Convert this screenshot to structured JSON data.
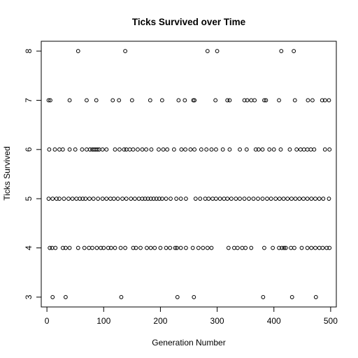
{
  "chart_data": {
    "type": "scatter",
    "title": "Ticks Survived over Time",
    "xlabel": "Generation Number",
    "ylabel": "Ticks Survived",
    "xlim": [
      -10,
      510
    ],
    "ylim": [
      2.8,
      8.2
    ],
    "xticks": [
      0,
      100,
      200,
      300,
      400,
      500
    ],
    "yticks": [
      3,
      4,
      5,
      6,
      7,
      8
    ],
    "grid": false,
    "marker": "open-circle",
    "points": [
      [
        55,
        8
      ],
      [
        138,
        8
      ],
      [
        283,
        8
      ],
      [
        300,
        8
      ],
      [
        413,
        8
      ],
      [
        435,
        8
      ],
      [
        3,
        7
      ],
      [
        6,
        7
      ],
      [
        40,
        7
      ],
      [
        70,
        7
      ],
      [
        87,
        7
      ],
      [
        116,
        7
      ],
      [
        127,
        7
      ],
      [
        150,
        7
      ],
      [
        182,
        7
      ],
      [
        203,
        7
      ],
      [
        232,
        7
      ],
      [
        243,
        7
      ],
      [
        258,
        7
      ],
      [
        260,
        7
      ],
      [
        297,
        7
      ],
      [
        318,
        7
      ],
      [
        322,
        7
      ],
      [
        348,
        7
      ],
      [
        353,
        7
      ],
      [
        360,
        7
      ],
      [
        366,
        7
      ],
      [
        383,
        7
      ],
      [
        386,
        7
      ],
      [
        409,
        7
      ],
      [
        437,
        7
      ],
      [
        460,
        7
      ],
      [
        468,
        7
      ],
      [
        485,
        7
      ],
      [
        490,
        7
      ],
      [
        497,
        7
      ],
      [
        4,
        6
      ],
      [
        14,
        6
      ],
      [
        22,
        6
      ],
      [
        28,
        6
      ],
      [
        40,
        6
      ],
      [
        50,
        6
      ],
      [
        62,
        6
      ],
      [
        70,
        6
      ],
      [
        76,
        6
      ],
      [
        80,
        6
      ],
      [
        83,
        6
      ],
      [
        86,
        6
      ],
      [
        89,
        6
      ],
      [
        92,
        6
      ],
      [
        98,
        6
      ],
      [
        105,
        6
      ],
      [
        120,
        6
      ],
      [
        128,
        6
      ],
      [
        136,
        6
      ],
      [
        140,
        6
      ],
      [
        146,
        6
      ],
      [
        152,
        6
      ],
      [
        160,
        6
      ],
      [
        168,
        6
      ],
      [
        175,
        6
      ],
      [
        184,
        6
      ],
      [
        197,
        6
      ],
      [
        205,
        6
      ],
      [
        212,
        6
      ],
      [
        224,
        6
      ],
      [
        237,
        6
      ],
      [
        244,
        6
      ],
      [
        253,
        6
      ],
      [
        260,
        6
      ],
      [
        272,
        6
      ],
      [
        281,
        6
      ],
      [
        290,
        6
      ],
      [
        298,
        6
      ],
      [
        310,
        6
      ],
      [
        322,
        6
      ],
      [
        340,
        6
      ],
      [
        352,
        6
      ],
      [
        368,
        6
      ],
      [
        373,
        6
      ],
      [
        380,
        6
      ],
      [
        392,
        6
      ],
      [
        400,
        6
      ],
      [
        412,
        6
      ],
      [
        428,
        6
      ],
      [
        440,
        6
      ],
      [
        447,
        6
      ],
      [
        453,
        6
      ],
      [
        459,
        6
      ],
      [
        465,
        6
      ],
      [
        471,
        6
      ],
      [
        490,
        6
      ],
      [
        498,
        6
      ],
      [
        3,
        5
      ],
      [
        10,
        5
      ],
      [
        17,
        5
      ],
      [
        22,
        5
      ],
      [
        30,
        5
      ],
      [
        38,
        5
      ],
      [
        45,
        5
      ],
      [
        52,
        5
      ],
      [
        58,
        5
      ],
      [
        63,
        5
      ],
      [
        68,
        5
      ],
      [
        75,
        5
      ],
      [
        82,
        5
      ],
      [
        90,
        5
      ],
      [
        98,
        5
      ],
      [
        105,
        5
      ],
      [
        112,
        5
      ],
      [
        118,
        5
      ],
      [
        125,
        5
      ],
      [
        133,
        5
      ],
      [
        140,
        5
      ],
      [
        148,
        5
      ],
      [
        155,
        5
      ],
      [
        162,
        5
      ],
      [
        168,
        5
      ],
      [
        173,
        5
      ],
      [
        178,
        5
      ],
      [
        183,
        5
      ],
      [
        188,
        5
      ],
      [
        193,
        5
      ],
      [
        198,
        5
      ],
      [
        203,
        5
      ],
      [
        210,
        5
      ],
      [
        218,
        5
      ],
      [
        228,
        5
      ],
      [
        236,
        5
      ],
      [
        245,
        5
      ],
      [
        262,
        5
      ],
      [
        270,
        5
      ],
      [
        279,
        5
      ],
      [
        285,
        5
      ],
      [
        292,
        5
      ],
      [
        298,
        5
      ],
      [
        305,
        5
      ],
      [
        312,
        5
      ],
      [
        318,
        5
      ],
      [
        325,
        5
      ],
      [
        333,
        5
      ],
      [
        340,
        5
      ],
      [
        348,
        5
      ],
      [
        356,
        5
      ],
      [
        364,
        5
      ],
      [
        372,
        5
      ],
      [
        380,
        5
      ],
      [
        388,
        5
      ],
      [
        395,
        5
      ],
      [
        403,
        5
      ],
      [
        410,
        5
      ],
      [
        417,
        5
      ],
      [
        424,
        5
      ],
      [
        431,
        5
      ],
      [
        438,
        5
      ],
      [
        445,
        5
      ],
      [
        452,
        5
      ],
      [
        459,
        5
      ],
      [
        466,
        5
      ],
      [
        473,
        5
      ],
      [
        480,
        5
      ],
      [
        487,
        5
      ],
      [
        497,
        5
      ],
      [
        5,
        4
      ],
      [
        9,
        4
      ],
      [
        15,
        4
      ],
      [
        28,
        4
      ],
      [
        33,
        4
      ],
      [
        40,
        4
      ],
      [
        55,
        4
      ],
      [
        66,
        4
      ],
      [
        74,
        4
      ],
      [
        80,
        4
      ],
      [
        88,
        4
      ],
      [
        95,
        4
      ],
      [
        100,
        4
      ],
      [
        108,
        4
      ],
      [
        113,
        4
      ],
      [
        120,
        4
      ],
      [
        130,
        4
      ],
      [
        138,
        4
      ],
      [
        152,
        4
      ],
      [
        157,
        4
      ],
      [
        165,
        4
      ],
      [
        176,
        4
      ],
      [
        183,
        4
      ],
      [
        190,
        4
      ],
      [
        200,
        4
      ],
      [
        210,
        4
      ],
      [
        217,
        4
      ],
      [
        226,
        4
      ],
      [
        229,
        4
      ],
      [
        236,
        4
      ],
      [
        245,
        4
      ],
      [
        257,
        4
      ],
      [
        267,
        4
      ],
      [
        275,
        4
      ],
      [
        283,
        4
      ],
      [
        290,
        4
      ],
      [
        320,
        4
      ],
      [
        330,
        4
      ],
      [
        336,
        4
      ],
      [
        344,
        4
      ],
      [
        350,
        4
      ],
      [
        360,
        4
      ],
      [
        383,
        4
      ],
      [
        398,
        4
      ],
      [
        409,
        4
      ],
      [
        414,
        4
      ],
      [
        418,
        4
      ],
      [
        421,
        4
      ],
      [
        430,
        4
      ],
      [
        436,
        4
      ],
      [
        449,
        4
      ],
      [
        459,
        4
      ],
      [
        466,
        4
      ],
      [
        473,
        4
      ],
      [
        480,
        4
      ],
      [
        486,
        4
      ],
      [
        493,
        4
      ],
      [
        498,
        4
      ],
      [
        10,
        3
      ],
      [
        33,
        3
      ],
      [
        131,
        3
      ],
      [
        230,
        3
      ],
      [
        259,
        3
      ],
      [
        381,
        3
      ],
      [
        432,
        3
      ],
      [
        474,
        3
      ]
    ]
  }
}
